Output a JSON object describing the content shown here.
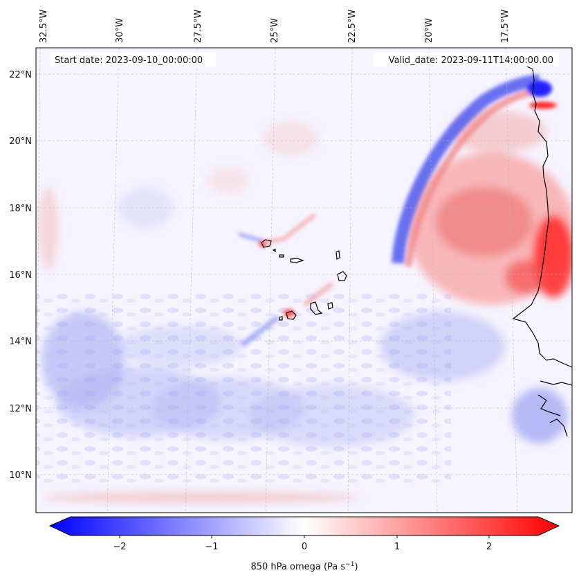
{
  "map": {
    "start_label": "Start date: 2023-09-10_00:00:00",
    "valid_label": "Valid_date: 2023-09-11T14:00:00.00",
    "field": "850 hPa omega",
    "lon_ticks": [
      "32.5°W",
      "30°W",
      "27.5°W",
      "25°W",
      "22.5°W",
      "20°W",
      "17.5°W"
    ],
    "lat_ticks": [
      "22°N",
      "20°N",
      "18°N",
      "16°N",
      "14°N",
      "12°N",
      "10°N"
    ],
    "islands": "Cabo Verde",
    "coastline": "West Africa (Mauritania / Senegal)"
  },
  "colorbar": {
    "label_main": "850 hPa omega (Pa s",
    "label_exp": "−1",
    "label_close": ")",
    "ticks": [
      "−2",
      "−1",
      "0",
      "1",
      "2"
    ],
    "range": [
      -2.6,
      2.6
    ],
    "colors": {
      "negative": "#0000ff",
      "zero": "#ffffff",
      "positive": "#ff0000"
    }
  }
}
